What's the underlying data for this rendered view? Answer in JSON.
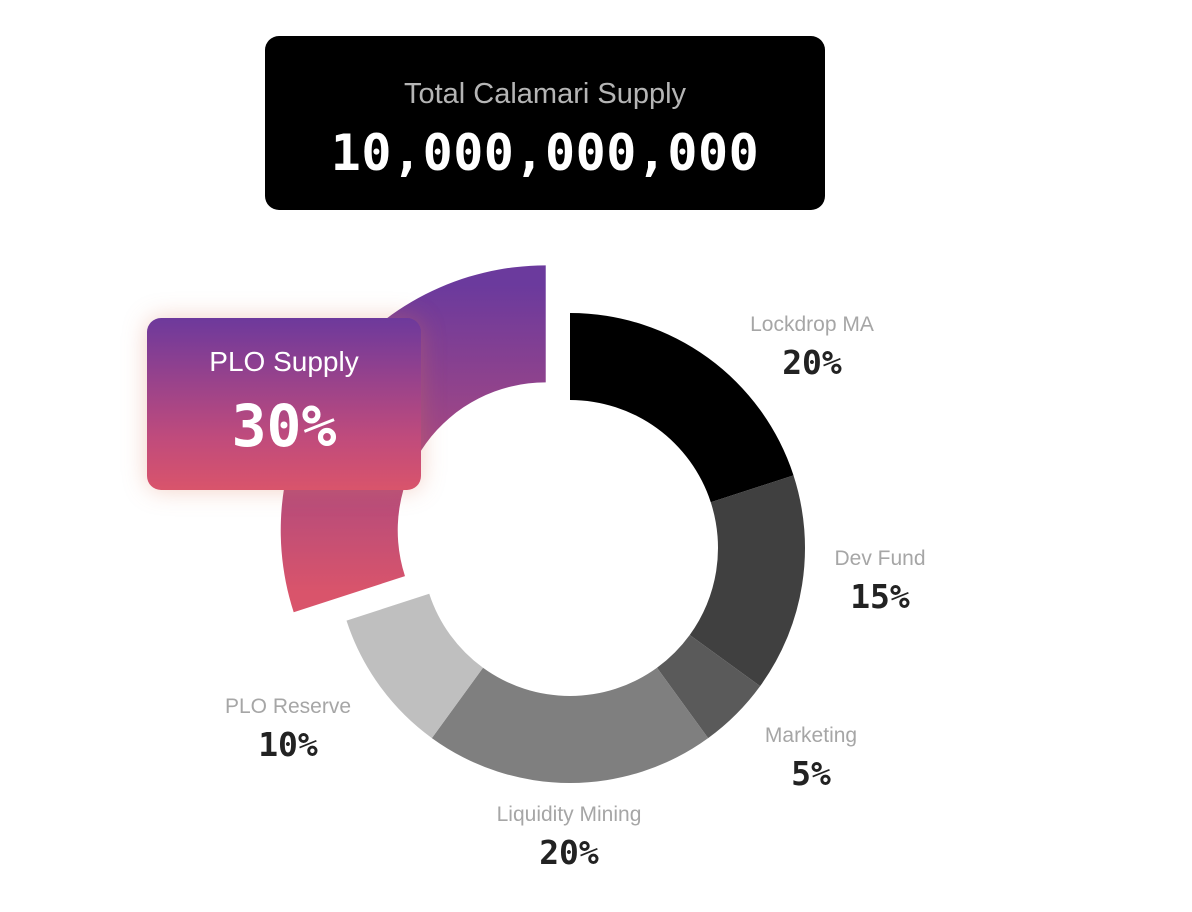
{
  "header": {
    "title": "Total Calamari Supply",
    "total": "10,000,000,000"
  },
  "chart_data": {
    "type": "pie",
    "title": "",
    "donut": true,
    "slices": [
      {
        "label": "Lockdrop MA",
        "value": 20,
        "display": "20%",
        "color": "#000000"
      },
      {
        "label": "Dev Fund",
        "value": 15,
        "display": "15%",
        "color": "#404040"
      },
      {
        "label": "Marketing",
        "value": 5,
        "display": "5%",
        "color": "#5a5a5a"
      },
      {
        "label": "Liquidity Mining",
        "value": 20,
        "display": "20%",
        "color": "#7f7f7f"
      },
      {
        "label": "PLO Reserve",
        "value": 10,
        "display": "10%",
        "color": "#bfbfbf"
      },
      {
        "label": "PLO Supply",
        "value": 30,
        "display": "30%",
        "color_top": "#6b3a9d",
        "color_bottom": "#d9546b",
        "exploded": true
      }
    ]
  }
}
